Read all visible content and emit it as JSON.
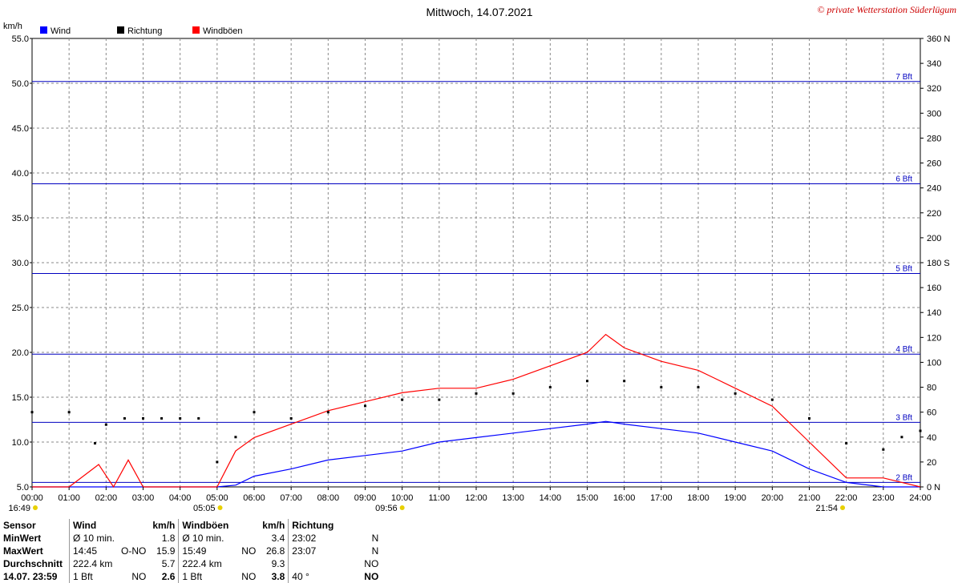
{
  "chart_data": {
    "type": "line",
    "title": "Mittwoch, 14.07.2021",
    "copyright": "© private Wetterstation Süderlügum",
    "y_unit_left": "km/h",
    "ylim": [
      5.0,
      55.0
    ],
    "y_ticks_left": [
      "5.0",
      "10.0",
      "15.0",
      "20.0",
      "25.0",
      "30.0",
      "35.0",
      "40.0",
      "45.0",
      "50.0",
      "55.0"
    ],
    "y2lim": [
      0,
      360
    ],
    "y_ticks_right": [
      "0 N",
      "20",
      "40",
      "60",
      "80",
      "100",
      "120",
      "140",
      "160",
      "180 S",
      "200",
      "220",
      "240",
      "260",
      "280",
      "300",
      "320",
      "340",
      "360 N"
    ],
    "x_ticks": [
      "00:00",
      "01:00",
      "02:00",
      "03:00",
      "04:00",
      "05:00",
      "06:00",
      "07:00",
      "08:00",
      "09:00",
      "10:00",
      "11:00",
      "12:00",
      "13:00",
      "14:00",
      "15:00",
      "16:00",
      "17:00",
      "18:00",
      "19:00",
      "20:00",
      "21:00",
      "22:00",
      "23:00",
      "24:00"
    ],
    "beaufort_lines": [
      {
        "label": "2 Bft",
        "value": 5.5
      },
      {
        "label": "3 Bft",
        "value": 12.2
      },
      {
        "label": "4 Bft",
        "value": 19.8
      },
      {
        "label": "5 Bft",
        "value": 28.8
      },
      {
        "label": "6 Bft",
        "value": 38.8
      },
      {
        "label": "7 Bft",
        "value": 50.2
      }
    ],
    "legend": [
      {
        "name": "Wind",
        "color": "#0000ff"
      },
      {
        "name": "Richtung",
        "color": "#000000"
      },
      {
        "name": "Windböen",
        "color": "#ff0000"
      }
    ],
    "sun_markers": [
      {
        "label": "16:49",
        "hour": 0
      },
      {
        "label": "05:05",
        "hour": 5.08
      },
      {
        "label": "09:56",
        "hour": 10.0
      },
      {
        "label": "21:54",
        "hour": 21.9
      }
    ],
    "series": [
      {
        "name": "Wind",
        "hours": [
          0,
          1,
          1.8,
          2.2,
          2.6,
          3,
          4,
          5,
          5.5,
          6,
          7,
          8,
          9,
          10,
          11,
          12,
          13,
          14,
          15,
          15.5,
          16,
          17,
          18,
          19,
          20,
          21,
          22,
          23,
          24
        ],
        "values": [
          5.0,
          5.0,
          5.0,
          5.0,
          5.0,
          5.0,
          5.0,
          5.0,
          5.2,
          6.2,
          7.0,
          8.0,
          8.5,
          9.0,
          10.0,
          10.5,
          11.0,
          11.5,
          12.0,
          12.3,
          12.0,
          11.5,
          11.0,
          10.0,
          9.0,
          7.0,
          5.5,
          5.0,
          5.0
        ]
      },
      {
        "name": "Windböen",
        "hours": [
          0,
          1,
          1.8,
          2.2,
          2.6,
          3,
          4,
          5,
          5.5,
          6,
          7,
          8,
          9,
          10,
          11,
          12,
          13,
          14,
          15,
          15.5,
          16,
          17,
          18,
          19,
          20,
          21,
          22,
          23,
          24
        ],
        "values": [
          5.0,
          5.0,
          7.5,
          5.0,
          8.0,
          5.0,
          5.0,
          5.0,
          9.0,
          10.5,
          12.0,
          13.5,
          14.5,
          15.5,
          16.0,
          16.0,
          17.0,
          18.5,
          20.0,
          22.0,
          20.5,
          19.0,
          18.0,
          16.0,
          14.0,
          10.0,
          6.0,
          6.0,
          5.0
        ]
      },
      {
        "name": "Richtung",
        "hours": [
          0,
          1,
          1.7,
          2,
          2.5,
          3,
          3.5,
          4,
          4.5,
          5,
          5.5,
          6,
          7,
          8,
          9,
          10,
          11,
          12,
          13,
          14,
          15,
          16,
          17,
          18,
          19,
          20,
          21,
          22,
          23,
          23.5,
          24
        ],
        "values": [
          60,
          60,
          35,
          50,
          55,
          55,
          55,
          55,
          55,
          20,
          40,
          60,
          55,
          60,
          65,
          70,
          70,
          75,
          75,
          80,
          85,
          85,
          80,
          80,
          75,
          70,
          55,
          35,
          30,
          40,
          45
        ]
      }
    ]
  },
  "stats": {
    "headers": {
      "sensor": "Sensor",
      "wind": "Wind",
      "unit1": "km/h",
      "gusts": "Windböen",
      "unit2": "km/h",
      "dir": "Richtung"
    },
    "rows": [
      {
        "label": "MinWert",
        "w1": "Ø 10 min.",
        "w2": "",
        "w3": "1.8",
        "g1": "Ø 10 min.",
        "g2": "",
        "g3": "3.4",
        "d1": "23:02",
        "d2": "N"
      },
      {
        "label": "MaxWert",
        "w1": "14:45",
        "w2": "O-NO",
        "w3": "15.9",
        "g1": "15:49",
        "g2": "NO",
        "g3": "26.8",
        "d1": "23:07",
        "d2": "N"
      },
      {
        "label": "Durchschnitt",
        "w1": "222.4 km",
        "w2": "",
        "w3": "5.7",
        "g1": "222.4 km",
        "g2": "",
        "g3": "9.3",
        "d1": "",
        "d2": "NO"
      },
      {
        "label": "14.07. 23:59",
        "w1": "1 Bft",
        "w2": "NO",
        "w3": "2.6",
        "g1": "1 Bft",
        "g2": "NO",
        "g3": "3.8",
        "d1": "40 °",
        "d2": "NO"
      }
    ]
  }
}
